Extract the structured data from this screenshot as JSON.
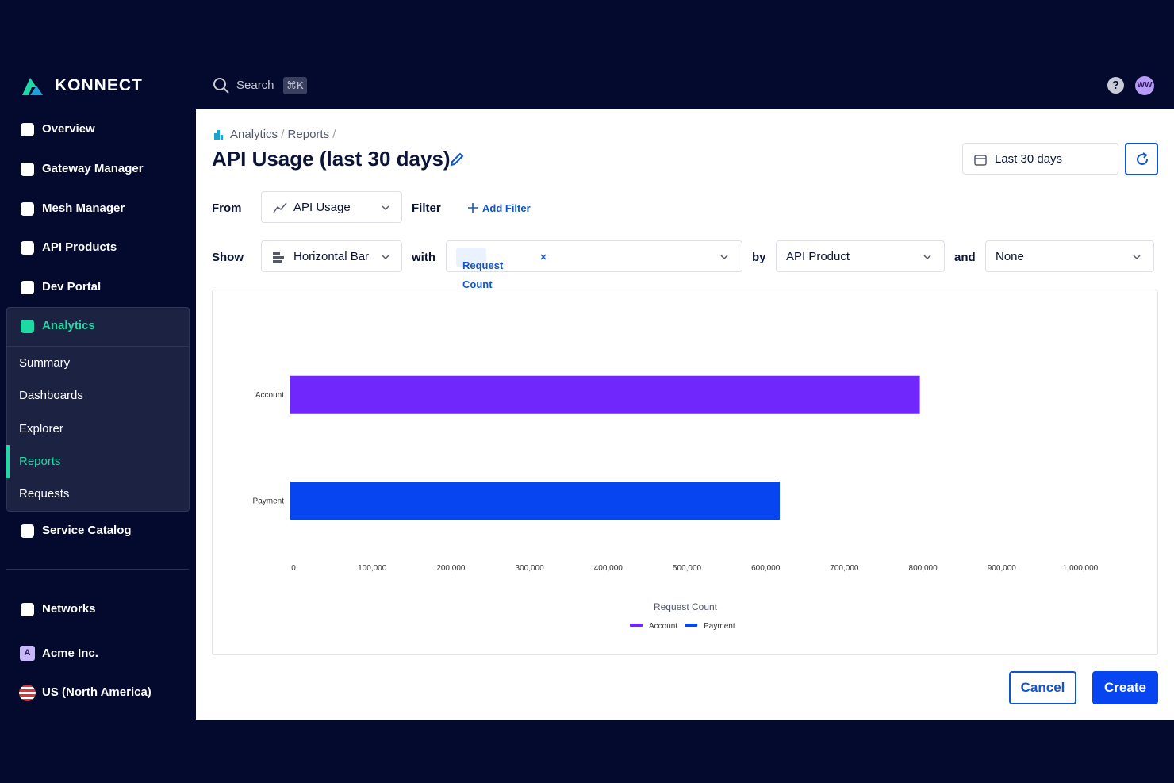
{
  "brand": "KONNECT",
  "search": {
    "placeholder": "Search",
    "shortcut": "⌘K"
  },
  "help": "?",
  "user": "WW",
  "nav": {
    "top": [
      "Overview",
      "Gateway Manager",
      "Mesh Manager",
      "API Products",
      "Dev Portal"
    ],
    "analytics": {
      "label": "Analytics",
      "children": [
        "Summary",
        "Dashboards",
        "Explorer",
        "Reports",
        "Requests"
      ],
      "active": 3
    },
    "after": [
      "Service Catalog"
    ],
    "networks": "Networks",
    "org": {
      "badge": "A",
      "name": "Acme Inc."
    },
    "region": "US (North America)"
  },
  "breadcrumb": {
    "items": [
      "Analytics",
      "Reports"
    ],
    "separator": "/"
  },
  "title": "API Usage (last 30 days)",
  "date_range": "Last 30 days",
  "form": {
    "from_label": "From",
    "from_value": "API Usage",
    "filter_label": "Filter",
    "add_filter": "Add Filter",
    "show_label": "Show",
    "show_value": "Horizontal Bar",
    "with_label": "with",
    "metric": "Request Count",
    "by_label": "by",
    "by_value": "API Product",
    "and_label": "and",
    "and_value": "None"
  },
  "buttons": {
    "cancel": "Cancel",
    "create": "Create"
  },
  "chart_data": {
    "type": "bar",
    "orientation": "horizontal",
    "categories": [
      "Account",
      "Payment"
    ],
    "series": [
      {
        "name": "Account",
        "color": "#7027fb",
        "values": [
          800000,
          null
        ]
      },
      {
        "name": "Payment",
        "color": "#0645ef",
        "values": [
          null,
          622000
        ]
      }
    ],
    "xlim": [
      0,
      1000000
    ],
    "xticks": [
      0,
      {
        "value": 100000,
        "label": "100,000"
      },
      {
        "value": 200000,
        "label": "200,000"
      },
      {
        "value": 300000,
        "label": "300,000"
      },
      {
        "value": 400000,
        "label": "400,000"
      },
      {
        "value": 500000,
        "label": "500,000"
      },
      {
        "value": 600000,
        "label": "600,000"
      },
      {
        "value": 700000,
        "label": "700,000"
      },
      {
        "value": 800000,
        "label": "800,000"
      },
      {
        "value": 900000,
        "label": "900,000"
      },
      {
        "value": 1000000,
        "label": "1,000,000"
      }
    ],
    "x_label": "Request Count",
    "grid": false,
    "legend": "bottom"
  }
}
